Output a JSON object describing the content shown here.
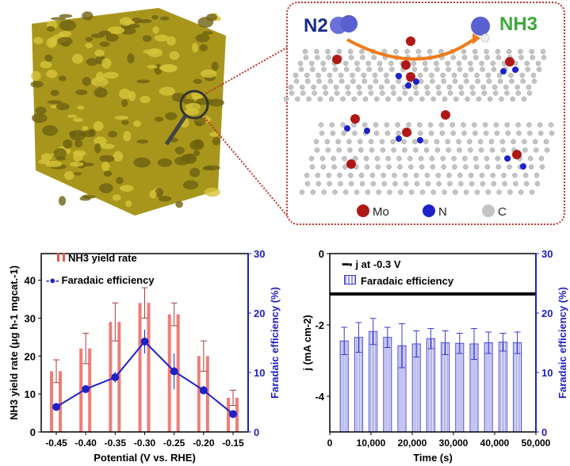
{
  "illustration": {
    "reactant": "N2",
    "product": "NH3",
    "legend": [
      {
        "label": "Mo",
        "color": "#b01818"
      },
      {
        "label": "N",
        "color": "#1c22c8"
      },
      {
        "label": "C",
        "color": "#c4c4c4"
      }
    ],
    "colors": {
      "foam": "#b8a424",
      "frame": "#c0302a",
      "reactant_text": "#1a2a8a",
      "product_text": "#3aa83a",
      "arrow": "#f07a18"
    }
  },
  "chart_data": [
    {
      "type": "bar+line",
      "xlabel": "Potential (V vs. RHE)",
      "ylabel": "NH3 yield rate (μg h-1 mgcat.-1)",
      "ylabel_right": "Faradaic efficiency (%)",
      "categories": [
        "-0.45",
        "-0.40",
        "-0.35",
        "-0.30",
        "-0.25",
        "-0.20",
        "-0.15"
      ],
      "yticks": [
        "0",
        "10",
        "20",
        "30",
        "40"
      ],
      "yticks_right": [
        "0",
        "10",
        "20",
        "30"
      ],
      "ylim": [
        0,
        47
      ],
      "ylim_right": [
        0,
        30
      ],
      "series": [
        {
          "name": "NH3 yield rate",
          "kind": "bar",
          "axis": "left",
          "color": "#e8524a",
          "values": [
            16,
            22,
            29,
            34,
            31,
            20,
            9
          ],
          "errors": [
            3,
            4,
            5,
            4,
            3,
            4,
            2
          ]
        },
        {
          "name": "Faradaic efficiency",
          "kind": "line",
          "axis": "right",
          "color": "#1c22c8",
          "values": [
            4.2,
            7.2,
            9.2,
            15.2,
            10.2,
            7.0,
            3.0
          ],
          "errors": [
            0.3,
            0.4,
            0.9,
            2.0,
            3.0,
            0.7,
            0.3
          ]
        }
      ],
      "legend": "top-left"
    },
    {
      "type": "bar+line",
      "xlabel": "Time (s)",
      "ylabel": "j (mA cm-2)",
      "ylabel_right": "Faradaic efficiency (%)",
      "xticks": [
        "0",
        "10,000",
        "20,000",
        "30,000",
        "40,000",
        "50,000"
      ],
      "yticks": [
        "0",
        "-2",
        "-4"
      ],
      "yticks_right": [
        "0",
        "10",
        "20",
        "30"
      ],
      "xlim": [
        0,
        50000
      ],
      "ylim": [
        -5,
        0
      ],
      "ylim_right": [
        0,
        30
      ],
      "series": [
        {
          "name": "j at -0.3 V",
          "kind": "line",
          "axis": "left",
          "color": "#000000",
          "x": [
            0,
            50000
          ],
          "values": [
            -1.13,
            -1.13
          ]
        },
        {
          "name": "Faradaic efficiency",
          "kind": "bar",
          "axis": "right",
          "color": "#3a3ad0",
          "x": [
            3500,
            7000,
            10500,
            14000,
            17500,
            21000,
            24500,
            28000,
            31500,
            35000,
            38500,
            42000,
            45500
          ],
          "values": [
            15.3,
            15.9,
            16.9,
            15.9,
            14.5,
            14.8,
            15.7,
            15.0,
            14.9,
            14.8,
            15.0,
            15.1,
            15.0
          ],
          "errors": [
            2.3,
            2.5,
            2.2,
            1.7,
            3.7,
            2.2,
            1.7,
            2.0,
            1.7,
            2.6,
            1.8,
            1.5,
            1.8
          ]
        }
      ],
      "legend": "top-left"
    }
  ]
}
